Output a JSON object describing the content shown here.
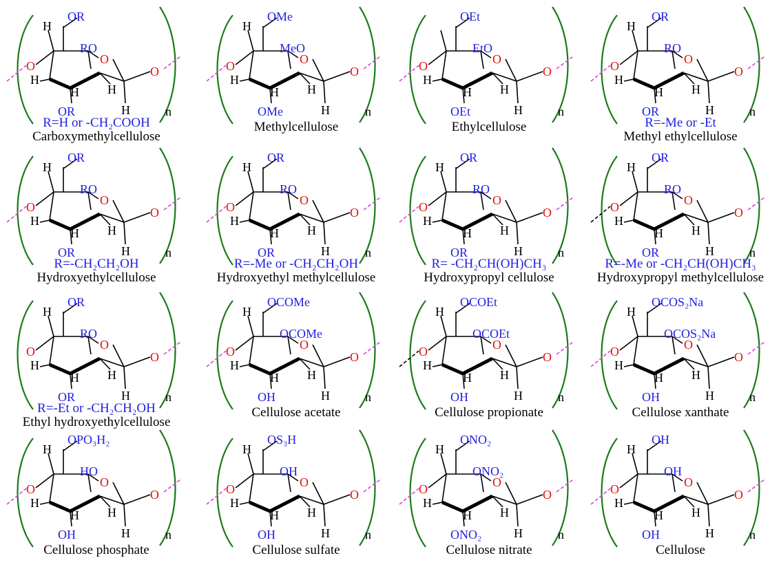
{
  "structures": [
    {
      "name": "Carboxymethylcellulose",
      "r_def": "R=H or -CH₂COOH",
      "sub6": "OR",
      "sub2": "RO",
      "sub3": "OR",
      "h6": true,
      "link": "pink"
    },
    {
      "name": "Methylcellulose",
      "r_def": "",
      "sub6": "OMe",
      "sub2": "MeO",
      "sub3": "OMe",
      "h6": true,
      "link": "pink"
    },
    {
      "name": "Ethylcellulose",
      "r_def": "",
      "sub6": "OEt",
      "sub2": "EtO",
      "sub3": "OEt",
      "h6": false,
      "link": "pink"
    },
    {
      "name": "Methyl ethylcellulose",
      "r_def": "R=-Me or -Et",
      "sub6": "OR",
      "sub2": "RO",
      "sub3": "OR",
      "h6": true,
      "link": "pink"
    },
    {
      "name": "Hydroxyethylcellulose",
      "r_def": "R=-CH₂CH₂OH",
      "sub6": "OR",
      "sub2": "RO",
      "sub3": "OR",
      "h6": true,
      "link": "pink"
    },
    {
      "name": "Hydroxyethyl methylcellulose",
      "r_def": "R=-Me or -CH₂CH₂OH",
      "sub6": "OR",
      "sub2": "RO",
      "sub3": "OR",
      "h6": true,
      "link": "pink"
    },
    {
      "name": "Hydroxypropyl cellulose",
      "r_def": "R= -CH₂CH(OH)CH₃",
      "sub6": "OR",
      "sub2": "RO",
      "sub3": "OR",
      "h6": true,
      "link": "pink"
    },
    {
      "name": "Hydroxypropyl methylcellulose",
      "r_def": "R=-Me or -CH₂CH(OH)CH₃",
      "sub6": "OR",
      "sub2": "RO",
      "sub3": "OR",
      "h6": true,
      "link": "black"
    },
    {
      "name": "Ethyl hydroxyethylcellulose",
      "r_def": "R=-Et or -CH₂CH₂OH",
      "sub6": "OR",
      "sub2": "RO",
      "sub3": "OR",
      "h6": true,
      "link": "none"
    },
    {
      "name": "Cellulose acetate",
      "r_def": "",
      "sub6": "OCOMe",
      "sub2": "OCOMe",
      "sub3": "OH",
      "h6": true,
      "link": "pink"
    },
    {
      "name": "Cellulose propionate",
      "r_def": "",
      "sub6": "OCOEt",
      "sub2": "OCOEt",
      "sub3": "OH",
      "h6": true,
      "link": "black"
    },
    {
      "name": "Cellulose xanthate",
      "r_def": "",
      "sub6": "OCOS₂Na",
      "sub2": "OCOS₂Na",
      "sub3": "OH",
      "h6": true,
      "link": "pink"
    },
    {
      "name": "Cellulose phosphate",
      "r_def": "",
      "sub6": "OPO₃H₂",
      "sub2": "HO",
      "sub3": "OH",
      "h6": true,
      "link": "pink"
    },
    {
      "name": "Cellulose sulfate",
      "r_def": "",
      "sub6": "OS₃H",
      "sub2": "OH",
      "sub3": "OH",
      "h6": true,
      "link": "pink"
    },
    {
      "name": "Cellulose nitrate",
      "r_def": "",
      "sub6": "ONO₂",
      "sub2": "ONO₂",
      "sub3": "ONO₂",
      "h6": true,
      "link": "pink"
    },
    {
      "name": "Cellulose",
      "r_def": "",
      "sub6": "OH",
      "sub2": "OH",
      "sub3": "OH",
      "h6": true,
      "link": "pink"
    }
  ],
  "atoms": {
    "ring_o": "O",
    "glycosidic_o": "O",
    "h": "H",
    "repeat": "n"
  },
  "colors": {
    "substituent": "#1f1fe0",
    "oxygen": "#e01010",
    "bracket": "#1a7a1a",
    "bond_link": "#e040e0",
    "bond": "#000000"
  }
}
